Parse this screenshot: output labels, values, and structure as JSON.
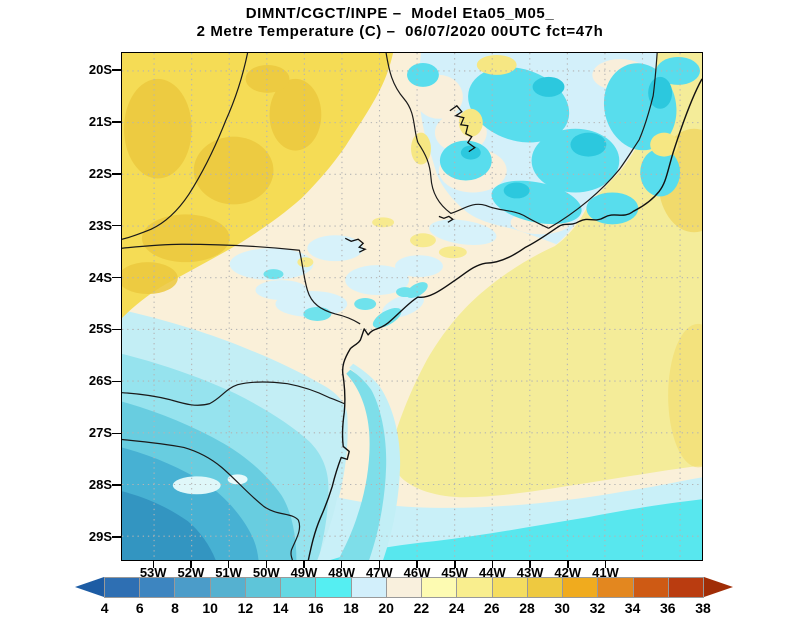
{
  "page": {
    "title_line1": "DIMNT/CGCT/INPE –  Model Eta05_M05_",
    "title_line2": "2 Metre Temperature (C) –  06/07/2020 00UTC fct=47h"
  },
  "axes": {
    "lat_labels": [
      "20S",
      "21S",
      "22S",
      "23S",
      "24S",
      "25S",
      "26S",
      "27S",
      "28S",
      "29S"
    ],
    "lon_labels": [
      "53W",
      "52W",
      "51W",
      "50W",
      "49W",
      "48W",
      "47W",
      "46W",
      "45W",
      "44W",
      "43W",
      "42W",
      "41W"
    ]
  },
  "colorbar": {
    "values": [
      "4",
      "6",
      "8",
      "10",
      "12",
      "14",
      "16",
      "18",
      "20",
      "22",
      "24",
      "26",
      "28",
      "30",
      "32",
      "34",
      "36",
      "38"
    ],
    "colors": [
      "#2e6fb3",
      "#3d85c0",
      "#4b9cc9",
      "#55b1d0",
      "#5ec5d9",
      "#64d8e3",
      "#55eef2",
      "#d2effb",
      "#f9f0dd",
      "#fdfbb2",
      "#f9ee8e",
      "#f5dd60",
      "#eec940",
      "#f0ab1e",
      "#e3871f",
      "#ce5a14",
      "#ba3c10"
    ],
    "arrow_left_color": "#1d5ca4",
    "arrow_right_color": "#a02d06"
  },
  "map": {
    "field_palette": {
      "warm_yellow_land": "#f5dc55",
      "golden_patch": "#ecc93e",
      "cream": "#faf0d9",
      "pale_blue": "#d3f0fa",
      "cyan_patch": "#58dded",
      "ocean_yellow": "#f4ec99",
      "ocean_pale_cyan": "#c9f0f8",
      "ocean_cyan_band": "#58e7ee",
      "south_teal_dark": "#3395c1",
      "line_color": "#1a1a1a",
      "grid_dot_color": "#b4b4b4"
    },
    "features": [
      "coastline",
      "state-borders",
      "reservoir-lakes",
      "dotted-graticule"
    ]
  },
  "chart_data": {
    "type": "heatmap",
    "title": "DIMNT/CGCT/INPE –  Model Eta05_M05_",
    "subtitle": "2 Metre Temperature (C) –  06/07/2020 00UTC fct=47h",
    "x_ticks": [
      "53W",
      "52W",
      "51W",
      "50W",
      "49W",
      "48W",
      "47W",
      "46W",
      "45W",
      "44W",
      "43W",
      "42W",
      "41W"
    ],
    "y_ticks": [
      "20S",
      "21S",
      "22S",
      "23S",
      "24S",
      "25S",
      "26S",
      "27S",
      "28S",
      "29S"
    ],
    "scale_values": [
      4,
      6,
      8,
      10,
      12,
      14,
      16,
      18,
      20,
      22,
      24,
      26,
      28,
      30,
      32,
      34,
      36,
      38
    ],
    "legend_position": "bottom",
    "grid": "dotted"
  }
}
